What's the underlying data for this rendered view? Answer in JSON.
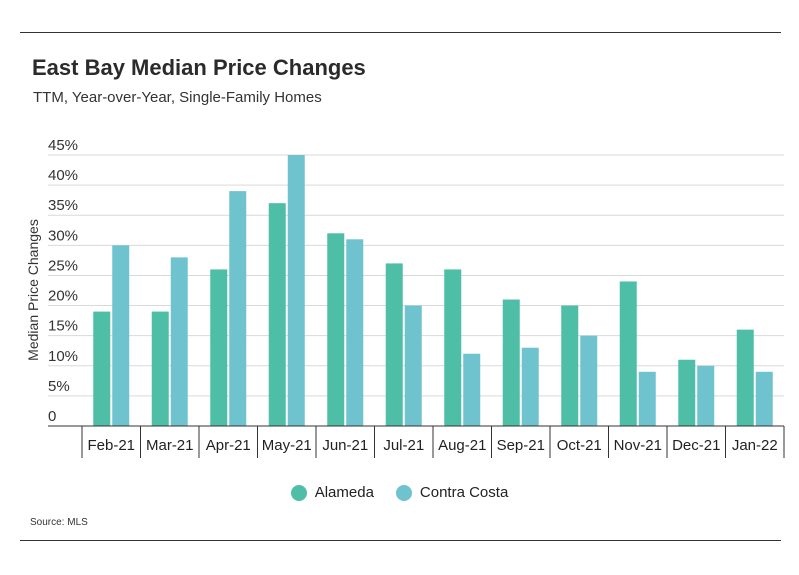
{
  "header": {
    "title": "East Bay Median Price Changes",
    "subtitle": "TTM, Year-over-Year, Single-Family Homes"
  },
  "footer": {
    "source": "Source:  MLS"
  },
  "colors": {
    "alameda": "#4fbea7",
    "contra_costa": "#6ec3cf",
    "grid": "#d9d9d9",
    "axis": "#333333"
  },
  "chart_data": {
    "type": "bar",
    "title": "East Bay Median Price Changes",
    "subtitle": "TTM, Year-over-Year, Single-Family Homes",
    "xlabel": "",
    "ylabel": "Median Price Changes",
    "categories": [
      "Feb-21",
      "Mar-21",
      "Apr-21",
      "May-21",
      "Jun-21",
      "Jul-21",
      "Aug-21",
      "Sep-21",
      "Oct-21",
      "Nov-21",
      "Dec-21",
      "Jan-22"
    ],
    "series": [
      {
        "name": "Alameda",
        "values": [
          19,
          19,
          26,
          37,
          32,
          27,
          26,
          21,
          20,
          24,
          11,
          16
        ]
      },
      {
        "name": "Contra Costa",
        "values": [
          30,
          28,
          39,
          45,
          31,
          20,
          12,
          13,
          15,
          9,
          10,
          9
        ]
      }
    ],
    "ylim": [
      0,
      45
    ],
    "yticks": [
      "0",
      "5%",
      "10%",
      "15%",
      "20%",
      "25%",
      "30%",
      "35%",
      "40%",
      "45%"
    ],
    "grid": true,
    "legend_position": "bottom"
  }
}
